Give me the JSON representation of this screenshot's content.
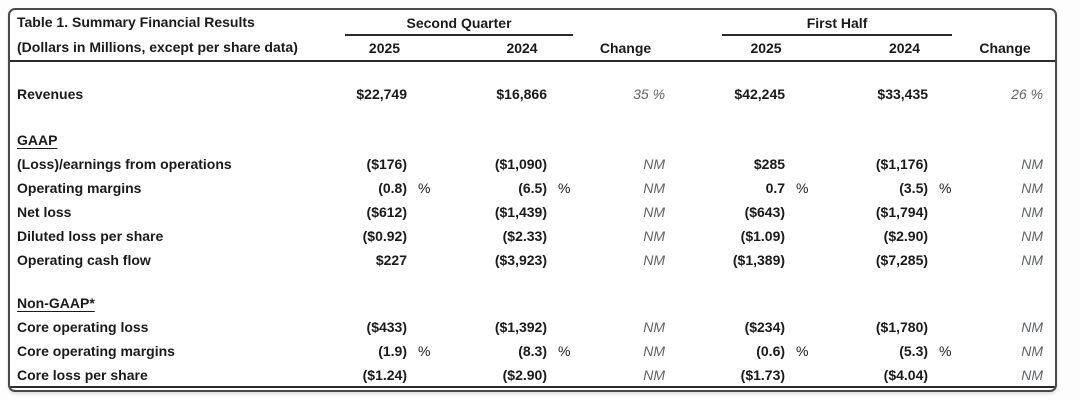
{
  "table": {
    "title": "Table 1. Summary Financial Results",
    "subtitle": "(Dollars in Millions, except per share data)",
    "groups": [
      {
        "label": "Second Quarter"
      },
      {
        "label": "First Half"
      }
    ],
    "columns": {
      "q2_2025": "2025",
      "q2_2024": "2024",
      "q2_change": "Change",
      "fh_2025": "2025",
      "fh_2024": "2024",
      "fh_change": "Change"
    },
    "rows": [
      {
        "type": "data",
        "label": "Revenues",
        "q2_2025": "$22,749",
        "q2_2025_pct": "",
        "q2_2024": "$16,866",
        "q2_2024_pct": "",
        "q2_change": "35 %",
        "fh_2025": "$42,245",
        "fh_2025_pct": "",
        "fh_2024": "$33,435",
        "fh_2024_pct": "",
        "fh_change": "26 %"
      },
      {
        "type": "spacer"
      },
      {
        "type": "section",
        "label": "GAAP"
      },
      {
        "type": "data",
        "label": "(Loss)/earnings from operations",
        "q2_2025": "($176)",
        "q2_2025_pct": "",
        "q2_2024": "($1,090)",
        "q2_2024_pct": "",
        "q2_change": "NM",
        "fh_2025": "$285",
        "fh_2025_pct": "",
        "fh_2024": "($1,176)",
        "fh_2024_pct": "",
        "fh_change": "NM"
      },
      {
        "type": "data",
        "label": "Operating margins",
        "q2_2025": "(0.8)",
        "q2_2025_pct": "%",
        "q2_2024": "(6.5)",
        "q2_2024_pct": "%",
        "q2_change": "NM",
        "fh_2025": "0.7",
        "fh_2025_pct": "%",
        "fh_2024": "(3.5)",
        "fh_2024_pct": "%",
        "fh_change": "NM"
      },
      {
        "type": "data",
        "label": "Net loss",
        "q2_2025": "($612)",
        "q2_2025_pct": "",
        "q2_2024": "($1,439)",
        "q2_2024_pct": "",
        "q2_change": "NM",
        "fh_2025": "($643)",
        "fh_2025_pct": "",
        "fh_2024": "($1,794)",
        "fh_2024_pct": "",
        "fh_change": "NM"
      },
      {
        "type": "data",
        "label": "Diluted loss per share",
        "q2_2025": "($0.92)",
        "q2_2025_pct": "",
        "q2_2024": "($2.33)",
        "q2_2024_pct": "",
        "q2_change": "NM",
        "fh_2025": "($1.09)",
        "fh_2025_pct": "",
        "fh_2024": "($2.90)",
        "fh_2024_pct": "",
        "fh_change": "NM"
      },
      {
        "type": "data",
        "label": "Operating cash flow",
        "q2_2025": "$227",
        "q2_2025_pct": "",
        "q2_2024": "($3,923)",
        "q2_2024_pct": "",
        "q2_change": "NM",
        "fh_2025": "($1,389)",
        "fh_2025_pct": "",
        "fh_2024": "($7,285)",
        "fh_2024_pct": "",
        "fh_change": "NM"
      },
      {
        "type": "spacer"
      },
      {
        "type": "section",
        "label": "Non-GAAP*"
      },
      {
        "type": "data",
        "label": "Core operating loss",
        "q2_2025": "($433)",
        "q2_2025_pct": "",
        "q2_2024": "($1,392)",
        "q2_2024_pct": "",
        "q2_change": "NM",
        "fh_2025": "($234)",
        "fh_2025_pct": "",
        "fh_2024": "($1,780)",
        "fh_2024_pct": "",
        "fh_change": "NM"
      },
      {
        "type": "data",
        "label": "Core operating margins",
        "q2_2025": "(1.9)",
        "q2_2025_pct": "%",
        "q2_2024": "(8.3)",
        "q2_2024_pct": "%",
        "q2_change": "NM",
        "fh_2025": "(0.6)",
        "fh_2025_pct": "%",
        "fh_2024": "(5.3)",
        "fh_2024_pct": "%",
        "fh_change": "NM"
      },
      {
        "type": "data",
        "label": "Core loss per share",
        "q2_2025": "($1.24)",
        "q2_2025_pct": "",
        "q2_2024": "($2.90)",
        "q2_2024_pct": "",
        "q2_change": "NM",
        "fh_2025": "($1.73)",
        "fh_2025_pct": "",
        "fh_2024": "($4.04)",
        "fh_2024_pct": "",
        "fh_change": "NM"
      }
    ],
    "text_color": "#1a1a1a",
    "change_text_color": "#5f6368",
    "rule_color": "#2b2b2b"
  }
}
